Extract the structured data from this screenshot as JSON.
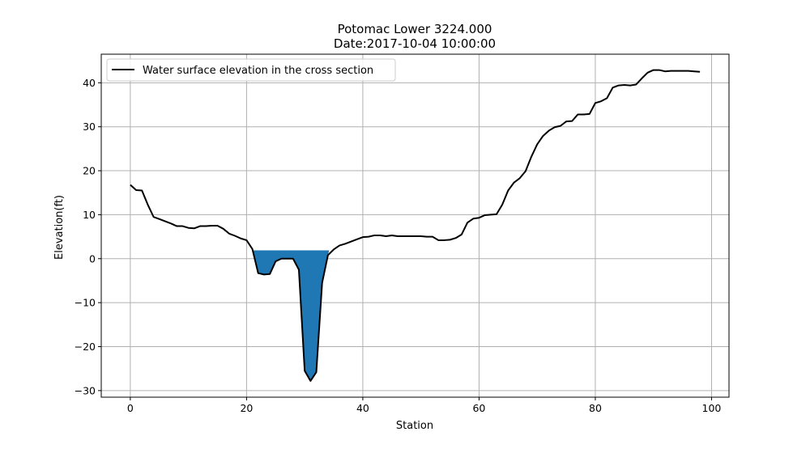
{
  "chart_data": {
    "type": "area",
    "title": "Potomac Lower 3224.000",
    "subtitle": "Date:2017-10-04 10:00:00",
    "xlabel": "Station",
    "ylabel": "Elevation(ft)",
    "xlim": [
      -5,
      103
    ],
    "ylim": [
      -31.5,
      46.5
    ],
    "xticks": [
      0,
      20,
      40,
      60,
      80,
      100
    ],
    "yticks": [
      -30,
      -20,
      -10,
      0,
      10,
      20,
      30,
      40
    ],
    "grid": true,
    "legend_position": "upper-left",
    "series": [
      {
        "name": "Water surface elevation in the cross section",
        "color": "#000000",
        "x": [
          0,
          1,
          2,
          3,
          4,
          5,
          6,
          7,
          8,
          9,
          10,
          11,
          12,
          13,
          14,
          15,
          16,
          17,
          18,
          19,
          20,
          21,
          22,
          23,
          24,
          25,
          26,
          27,
          28,
          29,
          30,
          31,
          32,
          33,
          34,
          35,
          36,
          37,
          38,
          39,
          40,
          41,
          42,
          43,
          44,
          45,
          46,
          47,
          48,
          49,
          50,
          51,
          52,
          53,
          54,
          55,
          56,
          57,
          58,
          59,
          60,
          61,
          62,
          63,
          64,
          65,
          66,
          67,
          68,
          69,
          70,
          71,
          72,
          73,
          74,
          75,
          76,
          77,
          78,
          79,
          80,
          81,
          82,
          83,
          84,
          85,
          86,
          87,
          88,
          89,
          90,
          91,
          92,
          93,
          94,
          95,
          96,
          97,
          98
        ],
        "y": [
          16.8,
          15.6,
          15.5,
          12.3,
          9.5,
          9.0,
          8.5,
          8.0,
          7.4,
          7.4,
          7.0,
          6.9,
          7.4,
          7.4,
          7.5,
          7.5,
          6.8,
          5.7,
          5.2,
          4.6,
          4.2,
          2.2,
          -3.3,
          -3.6,
          -3.5,
          -0.6,
          0.0,
          0.0,
          0.0,
          -2.5,
          -25.5,
          -27.8,
          -25.8,
          -5.5,
          0.8,
          2.1,
          3.0,
          3.4,
          3.9,
          4.4,
          4.9,
          5.0,
          5.3,
          5.3,
          5.1,
          5.3,
          5.1,
          5.1,
          5.1,
          5.1,
          5.1,
          5.0,
          5.0,
          4.2,
          4.2,
          4.3,
          4.7,
          5.5,
          8.2,
          9.1,
          9.3,
          9.9,
          10.0,
          10.1,
          12.3,
          15.5,
          17.3,
          18.3,
          19.9,
          23.2,
          26.0,
          27.9,
          29.1,
          29.9,
          30.2,
          31.2,
          31.3,
          32.8,
          32.8,
          32.9,
          35.4,
          35.8,
          36.5,
          38.9,
          39.4,
          39.5,
          39.4,
          39.6,
          41.0,
          42.3,
          42.9,
          42.9,
          42.6,
          42.7,
          42.7,
          42.7,
          42.7,
          42.6,
          42.5
        ]
      }
    ],
    "water": {
      "surface_elevation": 1.9,
      "x_start": 21.0,
      "x_end": 34.2,
      "color": "#1f77b4"
    }
  }
}
